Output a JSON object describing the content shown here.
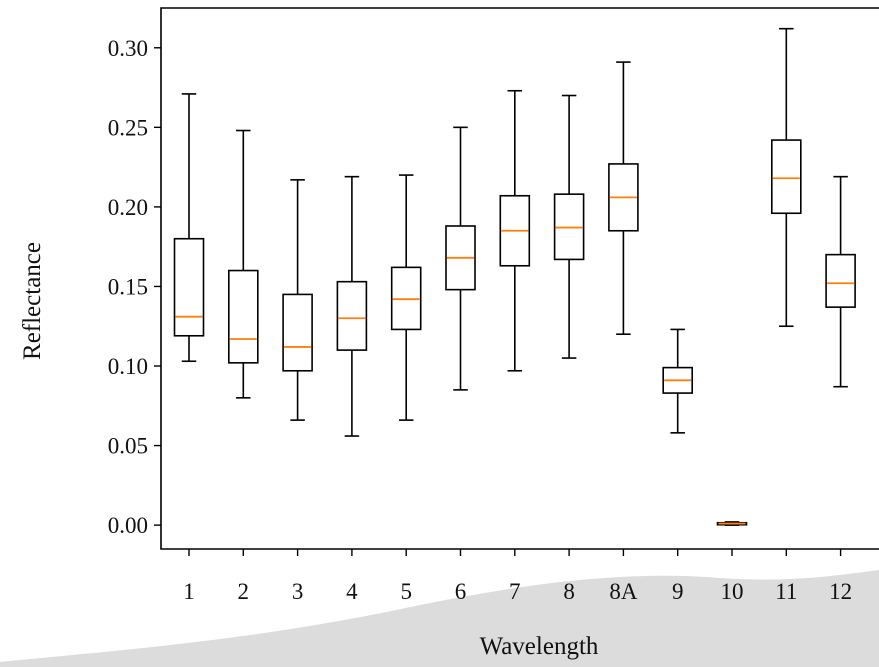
{
  "chart_data": {
    "type": "box",
    "xlabel": "Wavelength",
    "ylabel": "Reflectance",
    "ylim": [
      -0.015,
      0.325
    ],
    "yticks": [
      "0.00",
      "0.05",
      "0.10",
      "0.15",
      "0.20",
      "0.25",
      "0.30"
    ],
    "ytick_values": [
      0.0,
      0.05,
      0.1,
      0.15,
      0.2,
      0.25,
      0.3
    ],
    "categories": [
      "1",
      "2",
      "3",
      "4",
      "5",
      "6",
      "7",
      "8",
      "8A",
      "9",
      "10",
      "11",
      "12"
    ],
    "boxes": [
      {
        "whislo": 0.103,
        "q1": 0.119,
        "med": 0.131,
        "q3": 0.18,
        "whishi": 0.271
      },
      {
        "whislo": 0.08,
        "q1": 0.102,
        "med": 0.117,
        "q3": 0.16,
        "whishi": 0.248
      },
      {
        "whislo": 0.066,
        "q1": 0.097,
        "med": 0.112,
        "q3": 0.145,
        "whishi": 0.217
      },
      {
        "whislo": 0.056,
        "q1": 0.11,
        "med": 0.13,
        "q3": 0.153,
        "whishi": 0.219
      },
      {
        "whislo": 0.066,
        "q1": 0.123,
        "med": 0.142,
        "q3": 0.162,
        "whishi": 0.22
      },
      {
        "whislo": 0.085,
        "q1": 0.148,
        "med": 0.168,
        "q3": 0.188,
        "whishi": 0.25
      },
      {
        "whislo": 0.097,
        "q1": 0.163,
        "med": 0.185,
        "q3": 0.207,
        "whishi": 0.273
      },
      {
        "whislo": 0.105,
        "q1": 0.167,
        "med": 0.187,
        "q3": 0.208,
        "whishi": 0.27
      },
      {
        "whislo": 0.12,
        "q1": 0.185,
        "med": 0.206,
        "q3": 0.227,
        "whishi": 0.291
      },
      {
        "whislo": 0.058,
        "q1": 0.083,
        "med": 0.091,
        "q3": 0.099,
        "whishi": 0.123
      },
      {
        "whislo": 0.0,
        "q1": 0.0005,
        "med": 0.001,
        "q3": 0.0015,
        "whishi": 0.002
      },
      {
        "whislo": 0.125,
        "q1": 0.196,
        "med": 0.218,
        "q3": 0.242,
        "whishi": 0.312
      },
      {
        "whislo": 0.087,
        "q1": 0.137,
        "med": 0.152,
        "q3": 0.17,
        "whishi": 0.219
      }
    ],
    "colors": {
      "box": "#000000",
      "median": "#ff7f0e",
      "background_band": "#d9d9d9"
    }
  }
}
